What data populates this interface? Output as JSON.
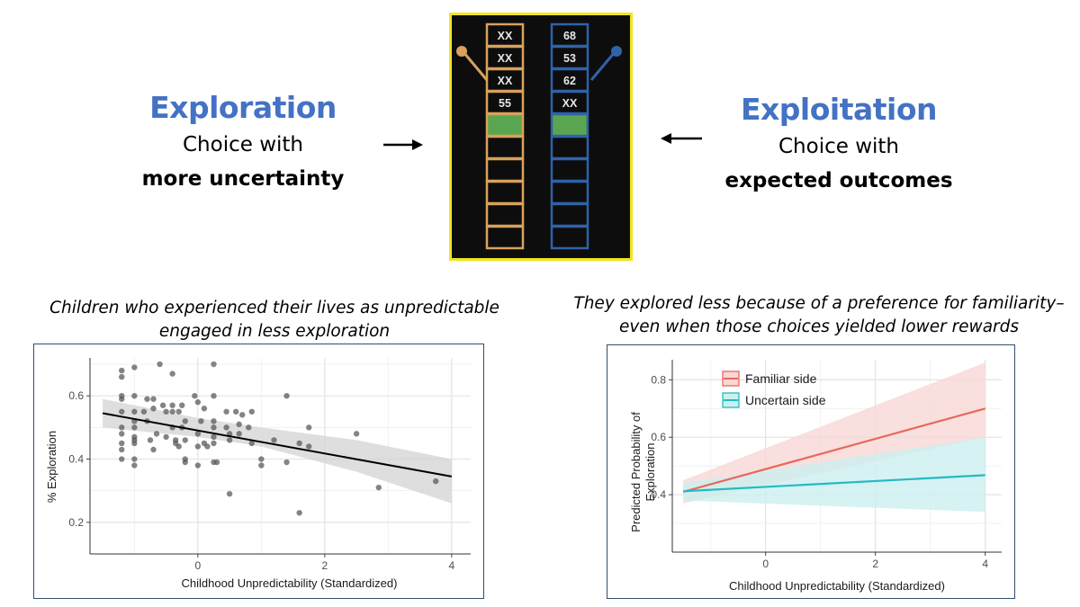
{
  "exploration": {
    "heading": "Exploration",
    "line1": "Choice with",
    "line2": "more uncertainty"
  },
  "exploitation": {
    "heading": "Exploitation",
    "line1": "Choice with",
    "line2": "expected outcomes"
  },
  "bandit": {
    "left_column": [
      "XX",
      "XX",
      "XX",
      "55"
    ],
    "right_column": [
      "68",
      "53",
      "62",
      "XX"
    ],
    "colors": {
      "left": "#d9a15c",
      "right": "#2e63a8",
      "selected": "#5aa550",
      "frame": "#f2e51c"
    }
  },
  "captions": {
    "left": [
      "Children who experienced their lives as unpredictable",
      "engaged in less exploration"
    ],
    "right": [
      "They explored less because of a preference for familiarity–",
      "even when those choices yielded lower rewards"
    ]
  },
  "chart_data": [
    {
      "type": "scatter",
      "xlabel": "Childhood Unpredictability (Standardized)",
      "ylabel": "% Exploration",
      "xlim": [
        -1.7,
        4.3
      ],
      "ylim": [
        0.1,
        0.72
      ],
      "x_ticks": [
        "0",
        "2",
        "4"
      ],
      "y_ticks": [
        "0.2",
        "0.4",
        "0.6"
      ],
      "grid": true,
      "points": [
        [
          -1.2,
          0.68
        ],
        [
          -1.2,
          0.66
        ],
        [
          -1.2,
          0.59
        ],
        [
          -1.2,
          0.6
        ],
        [
          -1.2,
          0.55
        ],
        [
          -1.2,
          0.5
        ],
        [
          -1.2,
          0.48
        ],
        [
          -1.2,
          0.45
        ],
        [
          -1.2,
          0.43
        ],
        [
          -1.2,
          0.4
        ],
        [
          -1.0,
          0.69
        ],
        [
          -1.0,
          0.6
        ],
        [
          -1.0,
          0.55
        ],
        [
          -1.0,
          0.52
        ],
        [
          -1.0,
          0.5
        ],
        [
          -1.0,
          0.47
        ],
        [
          -1.0,
          0.46
        ],
        [
          -1.0,
          0.45
        ],
        [
          -1.0,
          0.4
        ],
        [
          -1.0,
          0.38
        ],
        [
          -0.85,
          0.55
        ],
        [
          -0.8,
          0.59
        ],
        [
          -0.8,
          0.52
        ],
        [
          -0.75,
          0.46
        ],
        [
          -0.7,
          0.59
        ],
        [
          -0.7,
          0.56
        ],
        [
          -0.7,
          0.43
        ],
        [
          -0.65,
          0.48
        ],
        [
          -0.6,
          0.7
        ],
        [
          -0.55,
          0.57
        ],
        [
          -0.5,
          0.55
        ],
        [
          -0.5,
          0.47
        ],
        [
          -0.4,
          0.67
        ],
        [
          -0.4,
          0.57
        ],
        [
          -0.4,
          0.55
        ],
        [
          -0.4,
          0.5
        ],
        [
          -0.35,
          0.46
        ],
        [
          -0.35,
          0.45
        ],
        [
          -0.3,
          0.44
        ],
        [
          -0.3,
          0.55
        ],
        [
          -0.25,
          0.57
        ],
        [
          -0.25,
          0.5
        ],
        [
          -0.2,
          0.52
        ],
        [
          -0.2,
          0.46
        ],
        [
          -0.2,
          0.4
        ],
        [
          -0.2,
          0.39
        ],
        [
          -0.05,
          0.6
        ],
        [
          0.0,
          0.58
        ],
        [
          0.0,
          0.48
        ],
        [
          0.0,
          0.44
        ],
        [
          0.0,
          0.38
        ],
        [
          0.05,
          0.52
        ],
        [
          0.1,
          0.56
        ],
        [
          0.1,
          0.45
        ],
        [
          0.15,
          0.44
        ],
        [
          0.25,
          0.7
        ],
        [
          0.25,
          0.6
        ],
        [
          0.25,
          0.52
        ],
        [
          0.25,
          0.5
        ],
        [
          0.25,
          0.47
        ],
        [
          0.25,
          0.45
        ],
        [
          0.25,
          0.39
        ],
        [
          0.3,
          0.39
        ],
        [
          0.45,
          0.55
        ],
        [
          0.45,
          0.5
        ],
        [
          0.5,
          0.48
        ],
        [
          0.5,
          0.46
        ],
        [
          0.5,
          0.29
        ],
        [
          0.6,
          0.55
        ],
        [
          0.65,
          0.51
        ],
        [
          0.65,
          0.48
        ],
        [
          0.7,
          0.54
        ],
        [
          0.8,
          0.5
        ],
        [
          0.85,
          0.55
        ],
        [
          0.85,
          0.45
        ],
        [
          1.0,
          0.4
        ],
        [
          1.0,
          0.38
        ],
        [
          1.2,
          0.46
        ],
        [
          1.4,
          0.6
        ],
        [
          1.4,
          0.39
        ],
        [
          1.6,
          0.45
        ],
        [
          1.6,
          0.23
        ],
        [
          1.75,
          0.44
        ],
        [
          1.75,
          0.5
        ],
        [
          2.5,
          0.48
        ],
        [
          2.85,
          0.31
        ],
        [
          3.75,
          0.33
        ]
      ],
      "fit": {
        "x": [
          -1.5,
          4.0
        ],
        "y": [
          0.545,
          0.345
        ]
      },
      "ci_upper": [
        0.59,
        0.53,
        0.5,
        0.46,
        0.4
      ],
      "ci_lower": [
        0.5,
        0.47,
        0.44,
        0.36,
        0.26
      ],
      "ci_x": [
        -1.5,
        0.0,
        1.0,
        2.5,
        4.0
      ],
      "colors": {
        "points": "#555555",
        "line": "#000000",
        "ribbon": "#d3d3d3"
      }
    },
    {
      "type": "line",
      "xlabel": "Childhood Unpredictability (Standardized)",
      "ylabel": [
        "Predicted Probability of",
        "Exploration"
      ],
      "xlim": [
        -1.7,
        4.3
      ],
      "ylim": [
        0.2,
        0.87
      ],
      "x_ticks": [
        "0",
        "2",
        "4"
      ],
      "y_ticks": [
        "0.4",
        "0.6",
        "0.8"
      ],
      "grid": true,
      "legend_position": "top-left",
      "series": [
        {
          "name": "Familiar side",
          "x": [
            -1.5,
            4.0
          ],
          "y": [
            0.41,
            0.7
          ],
          "ci_upper": [
            0.45,
            0.86
          ],
          "ci_lower": [
            0.37,
            0.6
          ],
          "color": "#e8685e",
          "ribbon": "#f8d7d4"
        },
        {
          "name": "Uncertain side",
          "x": [
            -1.5,
            4.0
          ],
          "y": [
            0.412,
            0.468
          ],
          "ci_upper": [
            0.44,
            0.6
          ],
          "ci_lower": [
            0.38,
            0.34
          ],
          "color": "#1fbdc0",
          "ribbon": "#cdeff0"
        }
      ]
    }
  ]
}
